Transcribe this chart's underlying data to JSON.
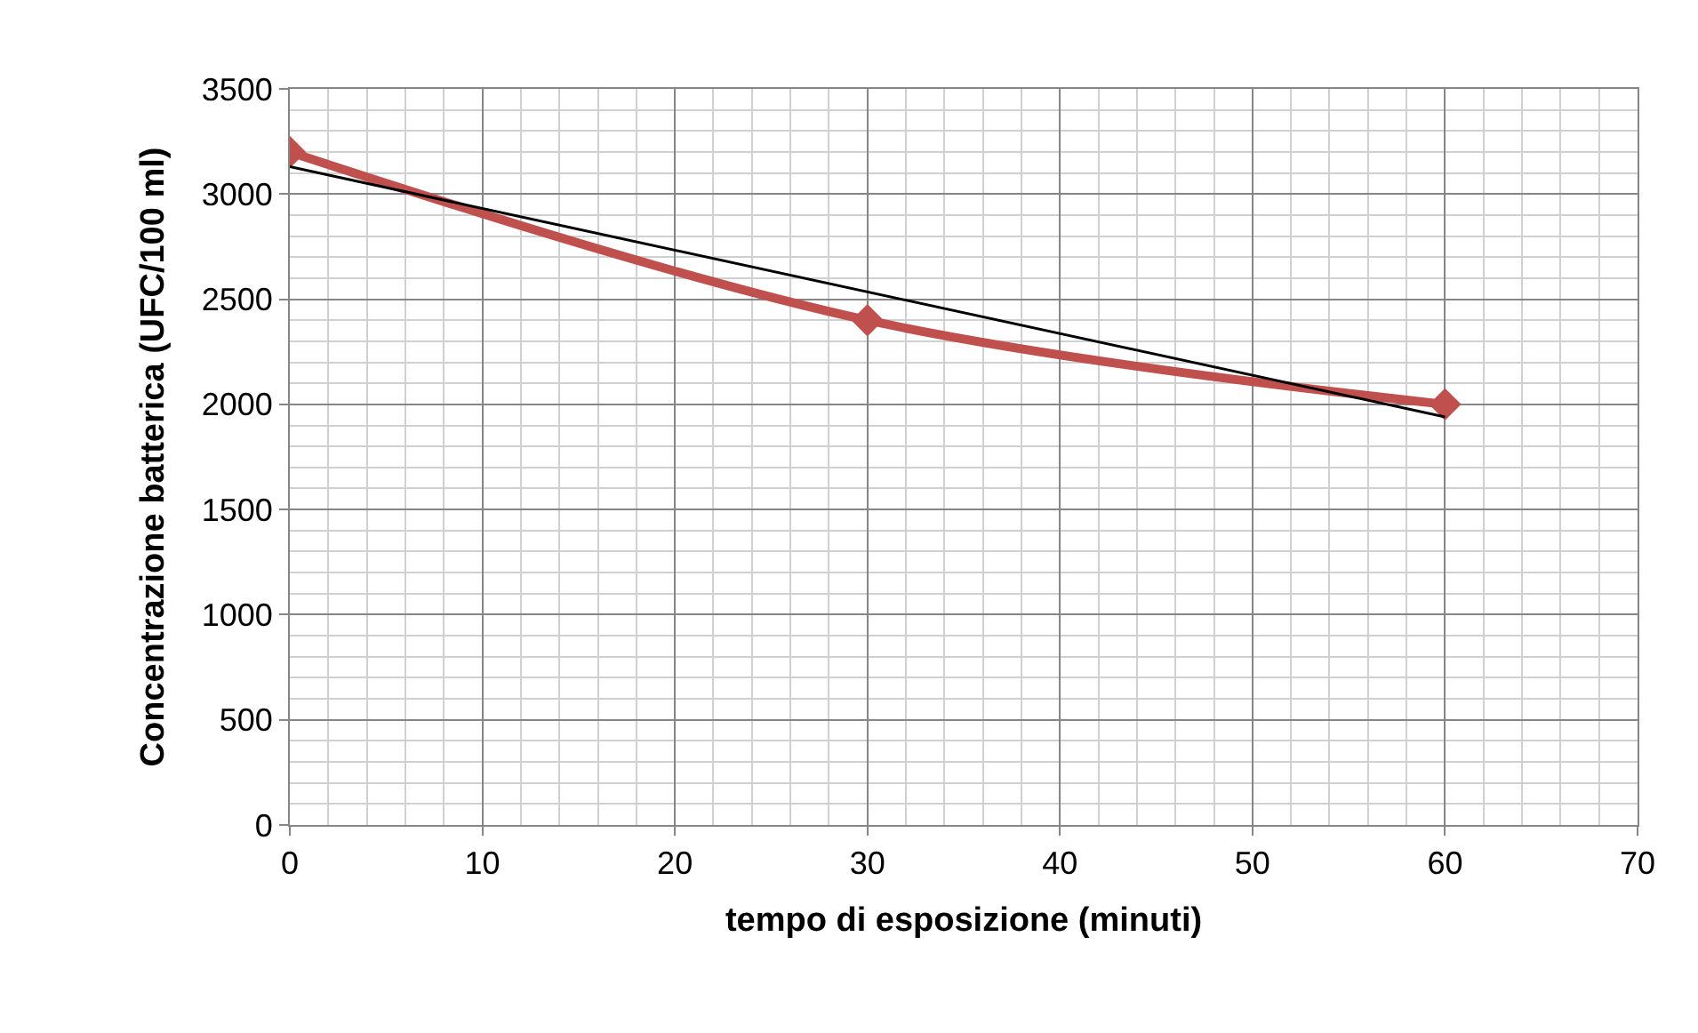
{
  "chart_data": {
    "type": "line",
    "xlabel": "tempo di esposizione (minuti)",
    "ylabel": "Concentrazione batterica (UFC/100 ml)",
    "series": [
      {
        "color": "#c0504d",
        "x": [
          0,
          30,
          60
        ],
        "values": [
          3200,
          2400,
          2000
        ],
        "marker": "diamond"
      },
      {
        "color": "#000000",
        "x": [
          0,
          60
        ],
        "values": [
          3130,
          1940
        ],
        "marker": "none"
      }
    ],
    "xlim": [
      0,
      70
    ],
    "xticks": [
      0,
      10,
      20,
      30,
      40,
      50,
      60,
      70
    ],
    "ylim": [
      0,
      3500
    ],
    "yticks": [
      0,
      500,
      1000,
      1500,
      2000,
      2500,
      3000,
      3500
    ],
    "grid": true
  }
}
